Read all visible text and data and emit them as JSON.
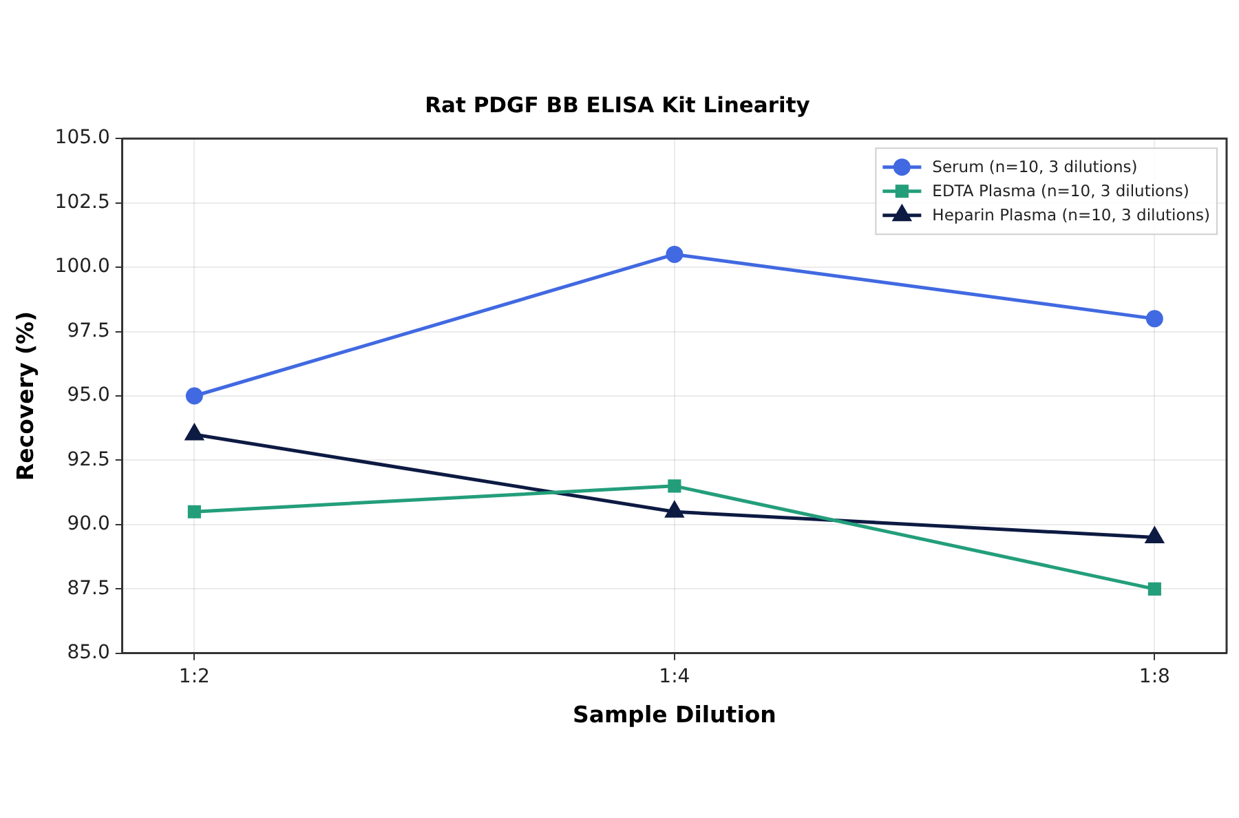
{
  "chart_data": {
    "type": "line",
    "title": "Rat PDGF BB ELISA Kit Linearity",
    "xlabel": "Sample Dilution",
    "ylabel": "Recovery (%)",
    "categories": [
      "1:2",
      "1:4",
      "1:8"
    ],
    "series": [
      {
        "name": "Serum (n=10, 3 dilutions)",
        "color": "#4169e1",
        "marker": "circle",
        "values": [
          95.0,
          100.5,
          98.0
        ]
      },
      {
        "name": "EDTA Plasma (n=10, 3 dilutions)",
        "color": "#239e7b",
        "marker": "square",
        "values": [
          90.5,
          91.5,
          87.5
        ]
      },
      {
        "name": "Heparin Plasma (n=10, 3 dilutions)",
        "color": "#0d1a42",
        "marker": "triangle",
        "values": [
          93.5,
          90.5,
          89.5
        ]
      }
    ],
    "ylim": [
      85,
      105
    ],
    "yticks": [
      {
        "value": 85,
        "label": "85.0"
      },
      87.5,
      {
        "value": 90,
        "label": "90.0"
      },
      92.5,
      {
        "value": 95,
        "label": "95.0"
      },
      97.5,
      {
        "value": 100,
        "label": "100.0"
      },
      102.5,
      {
        "value": 105,
        "label": "105.0"
      }
    ],
    "grid": true,
    "legend": "top right",
    "line_style": "solid"
  }
}
